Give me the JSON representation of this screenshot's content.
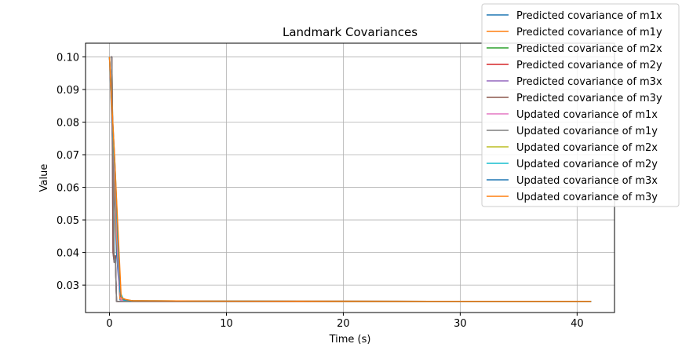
{
  "chart_data": {
    "type": "line",
    "title": "Landmark Covariances",
    "xlabel": "Time (s)",
    "ylabel": "Value",
    "xlim": [
      -2.05,
      43.2
    ],
    "ylim": [
      0.0216,
      0.1042
    ],
    "x_ticks": [
      0,
      10,
      20,
      30,
      40
    ],
    "y_ticks": [
      0.03,
      0.04,
      0.05,
      0.06,
      0.07,
      0.08,
      0.09,
      0.1
    ],
    "x_tick_labels": [
      "0",
      "10",
      "20",
      "30",
      "40"
    ],
    "y_tick_labels": [
      "0.03",
      "0.04",
      "0.05",
      "0.06",
      "0.07",
      "0.08",
      "0.09",
      "0.10"
    ],
    "grid": true,
    "legend_position": "top-right",
    "series": [
      {
        "name": "Predicted covariance of m1x",
        "color": "#1f77b4",
        "x": [
          0,
          0.6,
          0.9,
          1.3,
          2.0,
          5,
          10,
          20,
          30,
          41.2
        ],
        "y": [
          0.1,
          0.04,
          0.0255,
          0.0253,
          0.0252,
          0.0251,
          0.0251,
          0.0251,
          0.025,
          0.025
        ]
      },
      {
        "name": "Predicted covariance of m1y",
        "color": "#ff7f0e",
        "x": [
          0,
          0.6,
          0.9,
          1.3,
          2.0,
          5,
          10,
          20,
          30,
          41.2
        ],
        "y": [
          0.1,
          0.045,
          0.0258,
          0.0254,
          0.0252,
          0.0251,
          0.0251,
          0.0251,
          0.025,
          0.025
        ]
      },
      {
        "name": "Predicted covariance of m2x",
        "color": "#2ca02c",
        "x": [
          0.1,
          0.2,
          0.4,
          0.5,
          0.6,
          0.8,
          2,
          10,
          20,
          30,
          41.2
        ],
        "y": [
          0.1,
          0.1,
          0.037,
          0.039,
          0.025,
          0.025,
          0.025,
          0.025,
          0.025,
          0.025,
          0.025
        ]
      },
      {
        "name": "Predicted covariance of m2y",
        "color": "#d62728",
        "x": [
          0.1,
          0.2,
          0.4,
          0.5,
          0.6,
          0.8,
          2,
          10,
          20,
          30,
          41.2
        ],
        "y": [
          0.1,
          0.1,
          0.037,
          0.039,
          0.025,
          0.025,
          0.025,
          0.025,
          0.025,
          0.025,
          0.025
        ]
      },
      {
        "name": "Predicted covariance of m3x",
        "color": "#9467bd",
        "x": [
          0.1,
          0.2,
          0.3,
          0.4,
          0.5,
          0.6,
          0.8,
          2,
          10,
          20,
          30,
          41.2
        ],
        "y": [
          0.1,
          0.1,
          0.04,
          0.037,
          0.039,
          0.025,
          0.025,
          0.025,
          0.025,
          0.025,
          0.025,
          0.025
        ]
      },
      {
        "name": "Predicted covariance of m3y",
        "color": "#8c564b",
        "x": [
          0.1,
          0.2,
          0.3,
          0.4,
          0.5,
          0.6,
          0.8,
          2,
          10,
          20,
          30,
          41.2
        ],
        "y": [
          0.1,
          0.1,
          0.04,
          0.037,
          0.039,
          0.025,
          0.025,
          0.025,
          0.025,
          0.025,
          0.025,
          0.025
        ]
      },
      {
        "name": "Updated covariance of m1x",
        "color": "#e377c2",
        "x": [
          0,
          0.3,
          0.6,
          0.8,
          1.0,
          2,
          10,
          20,
          30,
          41.2
        ],
        "y": [
          0.1,
          0.075,
          0.05,
          0.03,
          0.0253,
          0.0251,
          0.0251,
          0.025,
          0.025,
          0.025
        ]
      },
      {
        "name": "Updated covariance of m1y",
        "color": "#7f7f7f",
        "x": [
          0.1,
          0.2,
          0.4,
          0.5,
          0.6,
          0.8,
          2,
          10,
          20,
          30,
          41.2
        ],
        "y": [
          0.1,
          0.1,
          0.037,
          0.038,
          0.025,
          0.025,
          0.025,
          0.025,
          0.025,
          0.025,
          0.025
        ]
      },
      {
        "name": "Updated covariance of m2x",
        "color": "#bcbd22",
        "x": [
          0,
          0.4,
          0.7,
          0.9,
          1.2,
          2,
          10,
          20,
          30,
          41.2
        ],
        "y": [
          0.1,
          0.07,
          0.045,
          0.028,
          0.0254,
          0.0252,
          0.0251,
          0.025,
          0.025,
          0.025
        ]
      },
      {
        "name": "Updated covariance of m2y",
        "color": "#17becf",
        "x": [
          0,
          0.4,
          0.7,
          0.9,
          1.2,
          2,
          10,
          20,
          30,
          41.2
        ],
        "y": [
          0.1,
          0.07,
          0.045,
          0.028,
          0.0254,
          0.0252,
          0.0251,
          0.025,
          0.025,
          0.025
        ]
      },
      {
        "name": "Updated covariance of m3x",
        "color": "#1f77b4",
        "x": [
          0,
          0.45,
          0.75,
          0.95,
          1.3,
          2,
          10,
          20,
          30,
          41.2
        ],
        "y": [
          0.1,
          0.068,
          0.043,
          0.0265,
          0.0255,
          0.0252,
          0.0251,
          0.025,
          0.025,
          0.025
        ]
      },
      {
        "name": "Updated covariance of m3y",
        "color": "#ff7f0e",
        "x": [
          0,
          0.45,
          0.75,
          1.0,
          1.4,
          2,
          10,
          20,
          30,
          41.2
        ],
        "y": [
          0.1,
          0.068,
          0.045,
          0.0262,
          0.0256,
          0.0252,
          0.0251,
          0.025,
          0.025,
          0.025
        ]
      }
    ]
  }
}
